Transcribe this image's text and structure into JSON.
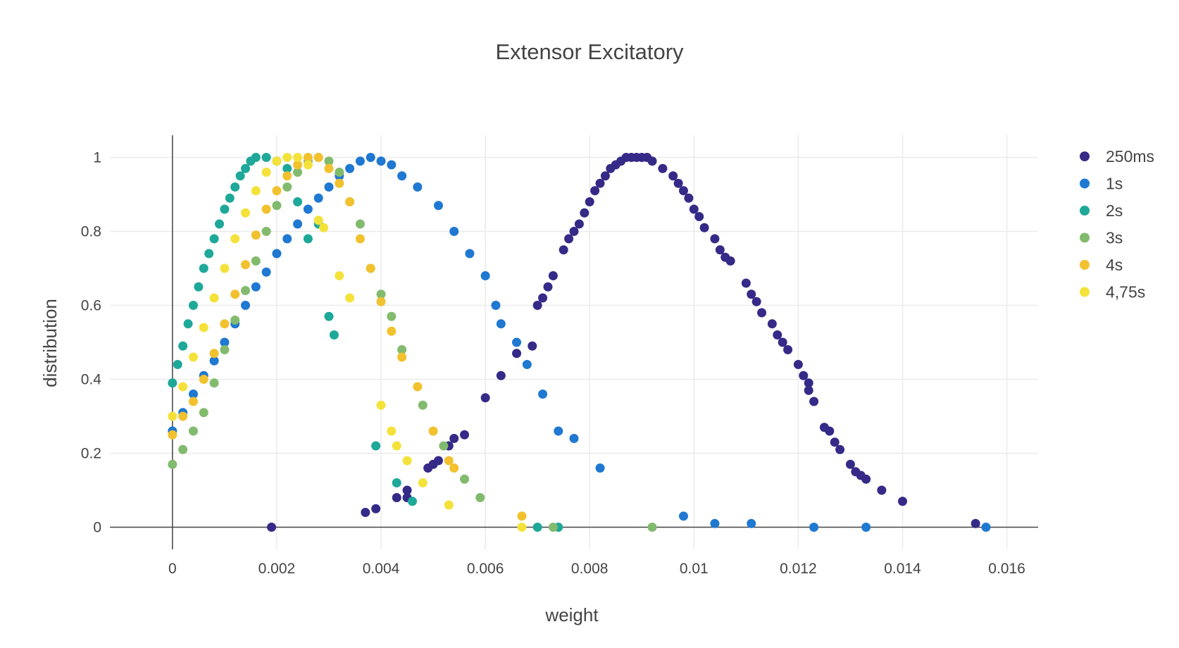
{
  "chart_data": {
    "type": "scatter",
    "title": "Extensor Excitatory",
    "xlabel": "weight",
    "ylabel": "distribution",
    "xlim": [
      -0.0012,
      0.0166
    ],
    "ylim": [
      -0.06,
      1.06
    ],
    "xticks": [
      0,
      0.002,
      0.004,
      0.006,
      0.008,
      0.01,
      0.012,
      0.014,
      0.016
    ],
    "xtick_labels": [
      "0",
      "0.002",
      "0.004",
      "0.006",
      "0.008",
      "0.01",
      "0.012",
      "0.014",
      "0.016"
    ],
    "yticks": [
      0,
      0.2,
      0.4,
      0.6,
      0.8,
      1
    ],
    "ytick_labels": [
      "0",
      "0.2",
      "0.4",
      "0.6",
      "0.8",
      "1"
    ],
    "grid": true,
    "legend_position": "top-right",
    "series": [
      {
        "name": "250ms",
        "color": "#352a87",
        "x": [
          0.0019,
          0.0037,
          0.0039,
          0.0043,
          0.0045,
          0.0045,
          0.0049,
          0.005,
          0.0051,
          0.0053,
          0.0054,
          0.0056,
          0.006,
          0.0063,
          0.0066,
          0.0069,
          0.007,
          0.0071,
          0.0072,
          0.0073,
          0.0075,
          0.0076,
          0.0077,
          0.0078,
          0.0079,
          0.008,
          0.0081,
          0.0082,
          0.0083,
          0.0084,
          0.0085,
          0.0086,
          0.0087,
          0.0088,
          0.0089,
          0.009,
          0.0091,
          0.0092,
          0.0094,
          0.0096,
          0.0097,
          0.0098,
          0.0099,
          0.01,
          0.0101,
          0.0102,
          0.0104,
          0.0105,
          0.0106,
          0.0107,
          0.011,
          0.0111,
          0.0112,
          0.0113,
          0.0115,
          0.0116,
          0.0117,
          0.0118,
          0.012,
          0.0121,
          0.0122,
          0.0122,
          0.0123,
          0.0125,
          0.0126,
          0.0127,
          0.0128,
          0.013,
          0.0131,
          0.0132,
          0.0133,
          0.0136,
          0.014,
          0.0154
        ],
        "y": [
          0.0,
          0.04,
          0.05,
          0.08,
          0.08,
          0.1,
          0.16,
          0.17,
          0.18,
          0.22,
          0.24,
          0.25,
          0.35,
          0.41,
          0.47,
          0.49,
          0.6,
          0.62,
          0.65,
          0.68,
          0.75,
          0.78,
          0.8,
          0.82,
          0.85,
          0.88,
          0.91,
          0.93,
          0.95,
          0.97,
          0.98,
          0.99,
          1.0,
          1.0,
          1.0,
          1.0,
          1.0,
          0.99,
          0.97,
          0.95,
          0.93,
          0.91,
          0.89,
          0.86,
          0.84,
          0.81,
          0.78,
          0.75,
          0.73,
          0.72,
          0.66,
          0.63,
          0.61,
          0.58,
          0.55,
          0.52,
          0.5,
          0.48,
          0.44,
          0.41,
          0.39,
          0.37,
          0.34,
          0.27,
          0.26,
          0.23,
          0.21,
          0.17,
          0.15,
          0.14,
          0.13,
          0.1,
          0.07,
          0.01
        ]
      },
      {
        "name": "1s",
        "color": "#1f78d1",
        "x": [
          0.0,
          0.0002,
          0.0004,
          0.0006,
          0.0008,
          0.001,
          0.0012,
          0.0014,
          0.0016,
          0.0018,
          0.002,
          0.0022,
          0.0024,
          0.0026,
          0.0028,
          0.003,
          0.0032,
          0.0034,
          0.0036,
          0.0038,
          0.004,
          0.0042,
          0.0044,
          0.0047,
          0.0051,
          0.0054,
          0.0057,
          0.006,
          0.0062,
          0.0063,
          0.0066,
          0.0068,
          0.0071,
          0.0074,
          0.0077,
          0.0082,
          0.0098,
          0.0104,
          0.0111,
          0.0123,
          0.0133,
          0.0156
        ],
        "y": [
          0.26,
          0.31,
          0.36,
          0.41,
          0.45,
          0.5,
          0.55,
          0.6,
          0.65,
          0.69,
          0.74,
          0.78,
          0.82,
          0.86,
          0.89,
          0.92,
          0.95,
          0.97,
          0.99,
          1.0,
          0.99,
          0.98,
          0.95,
          0.92,
          0.87,
          0.8,
          0.74,
          0.68,
          0.6,
          0.55,
          0.5,
          0.44,
          0.36,
          0.26,
          0.24,
          0.16,
          0.03,
          0.01,
          0.01,
          0.0,
          0.0,
          0.0
        ]
      },
      {
        "name": "2s",
        "color": "#1ea899",
        "x": [
          0.0,
          0.0001,
          0.0002,
          0.0003,
          0.0004,
          0.0005,
          0.0006,
          0.0007,
          0.0008,
          0.0009,
          0.001,
          0.0011,
          0.0012,
          0.0013,
          0.0014,
          0.0015,
          0.0016,
          0.0018,
          0.002,
          0.0022,
          0.0024,
          0.0026,
          0.0028,
          0.003,
          0.0031,
          0.0039,
          0.0043,
          0.0046,
          0.007,
          0.0074
        ],
        "y": [
          0.39,
          0.44,
          0.49,
          0.55,
          0.6,
          0.65,
          0.7,
          0.74,
          0.78,
          0.82,
          0.86,
          0.89,
          0.92,
          0.95,
          0.97,
          0.99,
          1.0,
          1.0,
          0.99,
          0.97,
          0.88,
          0.78,
          0.82,
          0.57,
          0.52,
          0.22,
          0.12,
          0.07,
          0.0,
          0.0
        ]
      },
      {
        "name": "3s",
        "color": "#82bb6e",
        "x": [
          0.0,
          0.0002,
          0.0004,
          0.0006,
          0.0008,
          0.001,
          0.0012,
          0.0014,
          0.0016,
          0.0018,
          0.002,
          0.0022,
          0.0024,
          0.0026,
          0.0028,
          0.003,
          0.0032,
          0.0034,
          0.0036,
          0.0038,
          0.004,
          0.0042,
          0.0044,
          0.0048,
          0.0052,
          0.0056,
          0.0059,
          0.0073,
          0.0092
        ],
        "y": [
          0.17,
          0.21,
          0.26,
          0.31,
          0.39,
          0.48,
          0.56,
          0.64,
          0.72,
          0.8,
          0.87,
          0.92,
          0.96,
          0.99,
          1.0,
          0.99,
          0.96,
          0.88,
          0.82,
          0.7,
          0.63,
          0.57,
          0.48,
          0.33,
          0.22,
          0.13,
          0.08,
          0.0,
          0.0
        ]
      },
      {
        "name": "4s",
        "color": "#f2c12e",
        "x": [
          0.0,
          0.0002,
          0.0004,
          0.0006,
          0.0008,
          0.001,
          0.0012,
          0.0014,
          0.0016,
          0.0018,
          0.002,
          0.0022,
          0.0024,
          0.0026,
          0.0028,
          0.003,
          0.0032,
          0.0034,
          0.0036,
          0.0038,
          0.004,
          0.0042,
          0.0044,
          0.0047,
          0.005,
          0.0053,
          0.0054,
          0.0067
        ],
        "y": [
          0.25,
          0.3,
          0.34,
          0.4,
          0.47,
          0.55,
          0.63,
          0.71,
          0.79,
          0.86,
          0.91,
          0.95,
          0.98,
          1.0,
          1.0,
          0.97,
          0.93,
          0.88,
          0.78,
          0.7,
          0.61,
          0.53,
          0.46,
          0.38,
          0.26,
          0.18,
          0.16,
          0.03
        ]
      },
      {
        "name": "4,75s",
        "color": "#f4e23a",
        "x": [
          0.0,
          0.0002,
          0.0004,
          0.0006,
          0.0008,
          0.001,
          0.0012,
          0.0014,
          0.0016,
          0.0018,
          0.002,
          0.0022,
          0.0024,
          0.0026,
          0.0028,
          0.0029,
          0.0032,
          0.0034,
          0.004,
          0.0042,
          0.0043,
          0.0045,
          0.0048,
          0.0053,
          0.0067
        ],
        "y": [
          0.3,
          0.38,
          0.46,
          0.54,
          0.62,
          0.7,
          0.78,
          0.85,
          0.91,
          0.96,
          0.99,
          1.0,
          1.0,
          0.98,
          0.83,
          0.81,
          0.68,
          0.62,
          0.33,
          0.26,
          0.22,
          0.18,
          0.12,
          0.06,
          0.0
        ]
      }
    ]
  }
}
